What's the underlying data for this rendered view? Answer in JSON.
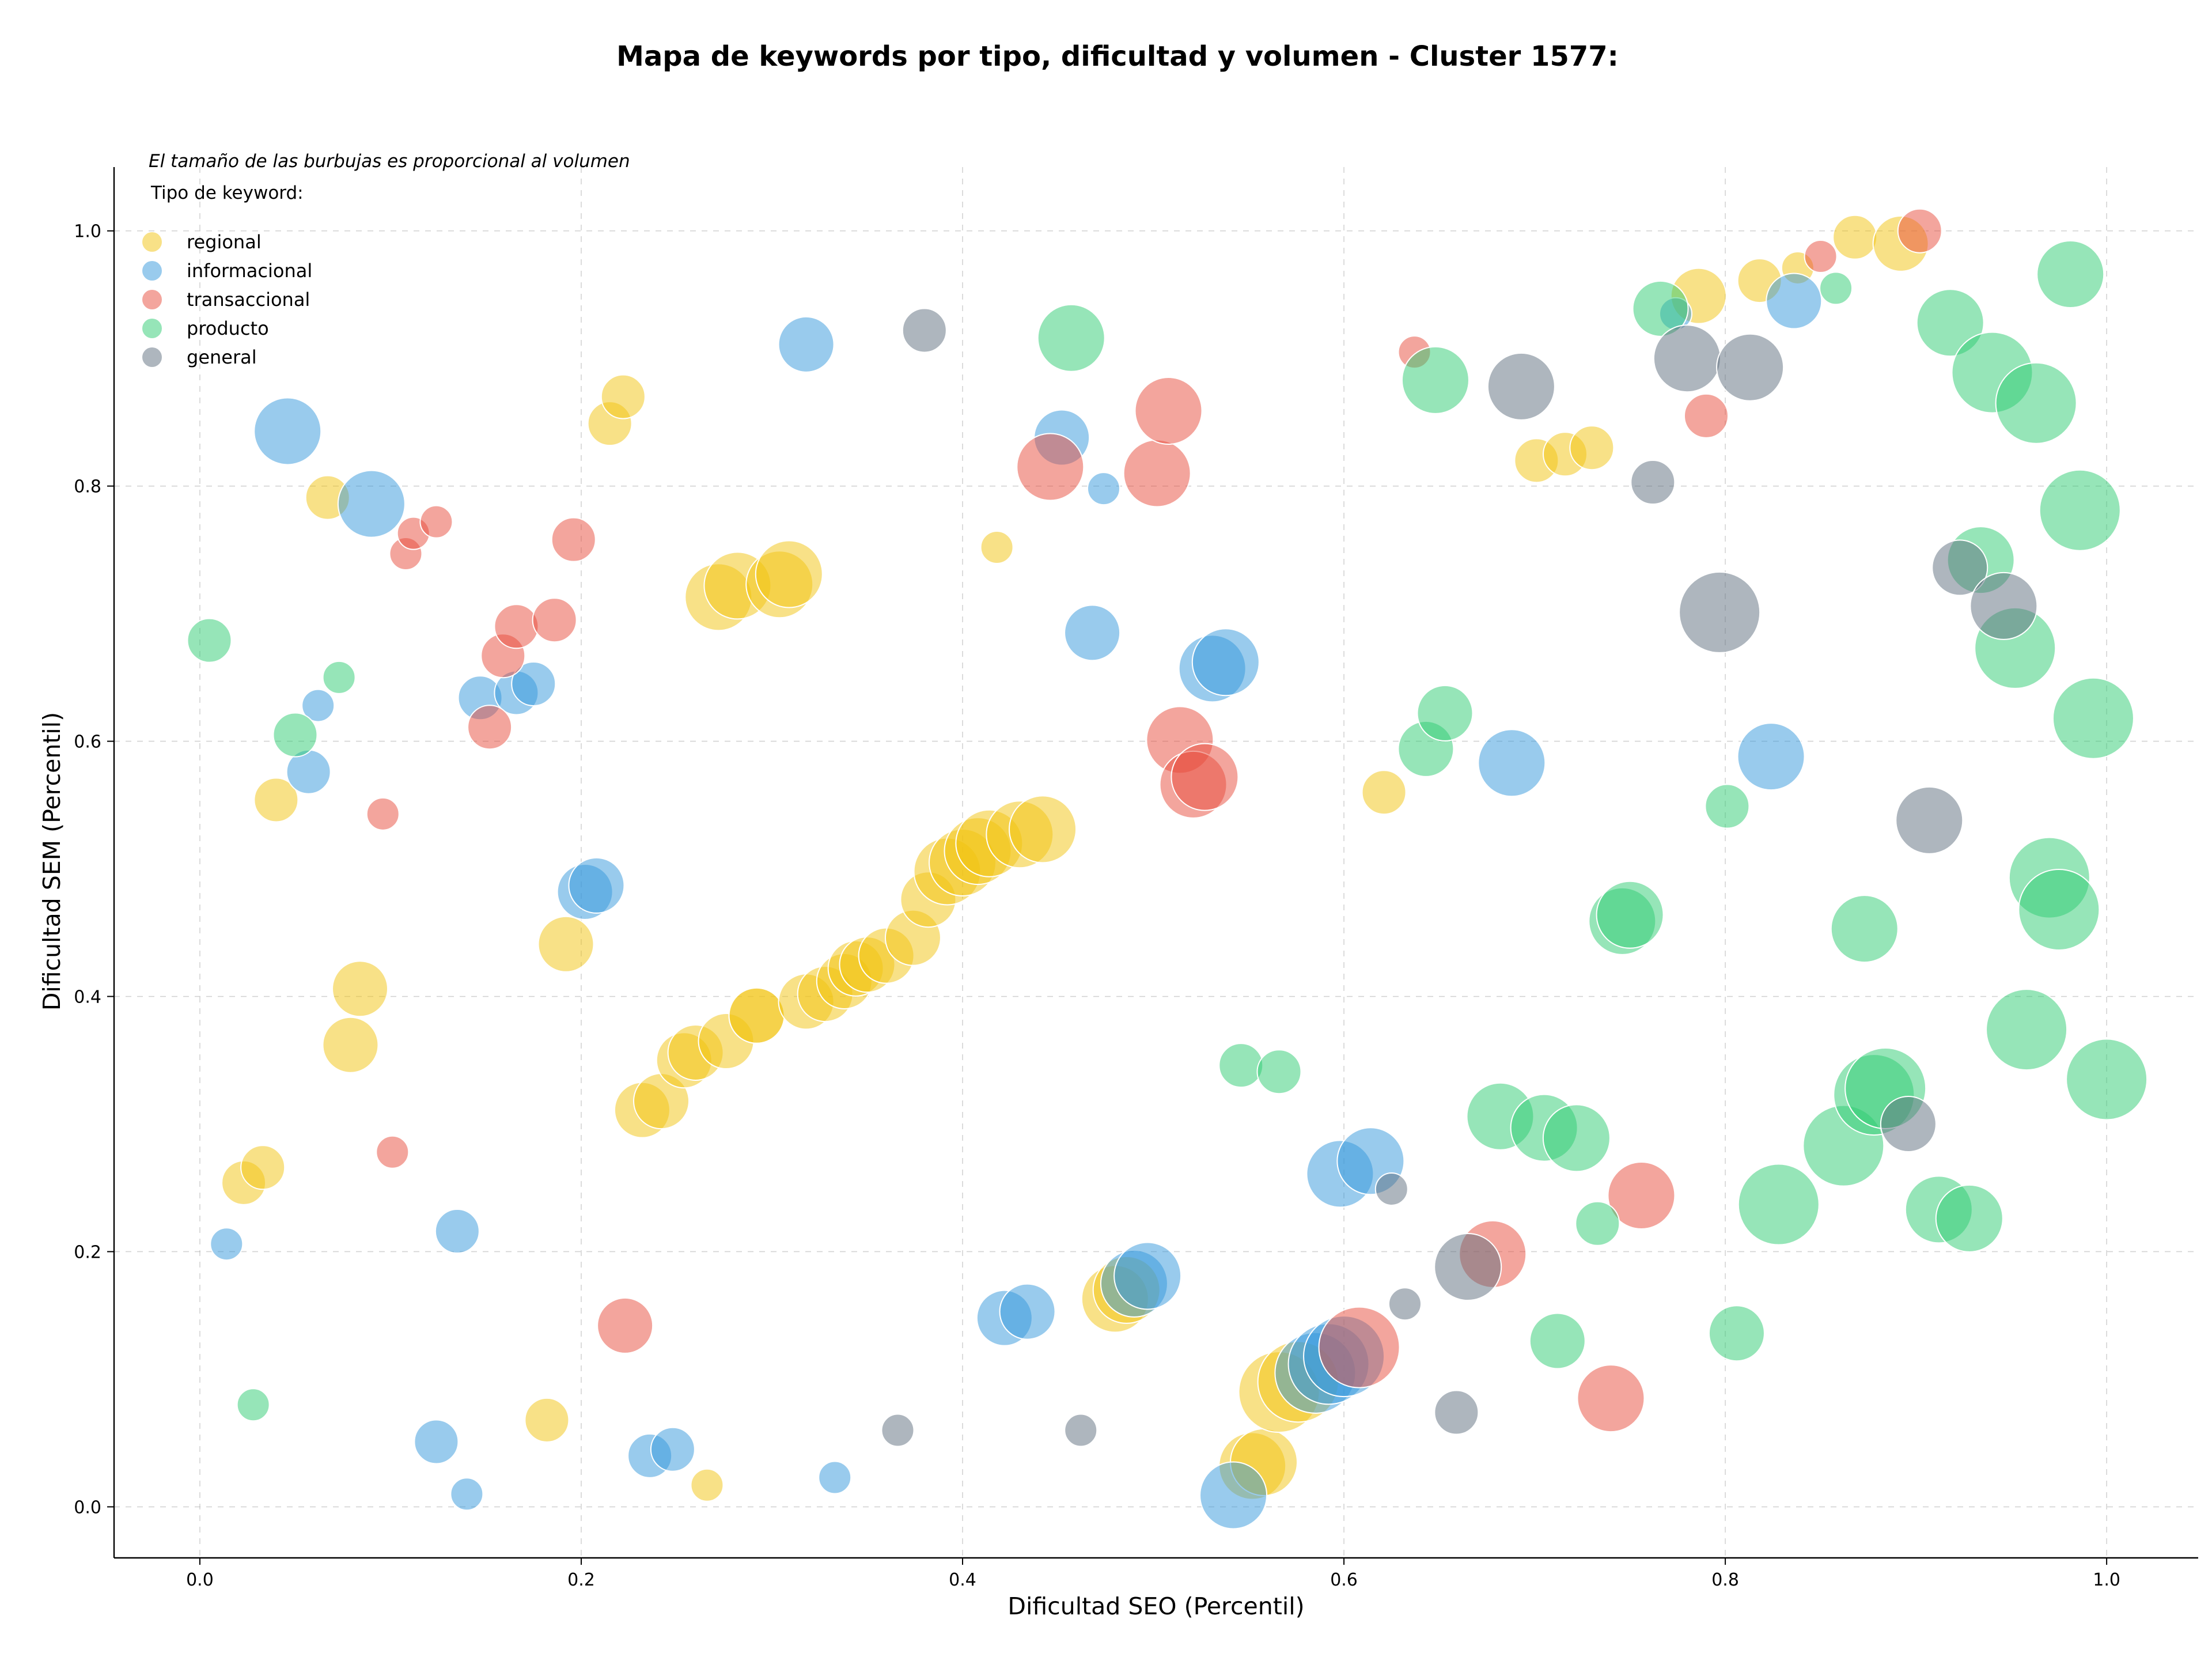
{
  "chart_data": {
    "type": "scatter",
    "title": "Mapa de keywords por tipo, dificultad y volumen - Cluster 1577:",
    "xlabel": "Dificultad SEO (Percentil)",
    "ylabel": "Dificultad SEM (Percentil)",
    "xlim": [
      -0.045,
      1.048
    ],
    "ylim": [
      -0.04,
      1.05
    ],
    "xticks": [
      "0.0",
      "0.2",
      "0.4",
      "0.6",
      "0.8",
      "1.0"
    ],
    "yticks": [
      "0.0",
      "0.2",
      "0.4",
      "0.6",
      "0.8",
      "1.0"
    ],
    "grid": true,
    "annotation": "El tamaño de las burbujas es proporcional al volumen",
    "legend": {
      "title": "Tipo de keyword:",
      "placement": "top-left"
    },
    "series": [
      {
        "name": "regional",
        "color": "#f1c40f",
        "points": [
          [
            0.023,
            0.254,
            3
          ],
          [
            0.033,
            0.266,
            3
          ],
          [
            0.04,
            0.554,
            3
          ],
          [
            0.067,
            0.791,
            3
          ],
          [
            0.079,
            0.362,
            4
          ],
          [
            0.084,
            0.406,
            4
          ],
          [
            0.182,
            0.068,
            3
          ],
          [
            0.192,
            0.441,
            4
          ],
          [
            0.215,
            0.849,
            3
          ],
          [
            0.222,
            0.87,
            3
          ],
          [
            0.232,
            0.311,
            4
          ],
          [
            0.242,
            0.318,
            4
          ],
          [
            0.254,
            0.35,
            4
          ],
          [
            0.26,
            0.356,
            4
          ],
          [
            0.266,
            0.017,
            2
          ],
          [
            0.272,
            0.713,
            5
          ],
          [
            0.276,
            0.365,
            4
          ],
          [
            0.282,
            0.722,
            5
          ],
          [
            0.292,
            0.385,
            4
          ],
          [
            0.292,
            0.385,
            4
          ],
          [
            0.304,
            0.723,
            5
          ],
          [
            0.309,
            0.731,
            5
          ],
          [
            0.318,
            0.396,
            4
          ],
          [
            0.328,
            0.402,
            4
          ],
          [
            0.338,
            0.412,
            4
          ],
          [
            0.344,
            0.422,
            4
          ],
          [
            0.35,
            0.425,
            4
          ],
          [
            0.36,
            0.432,
            4
          ],
          [
            0.374,
            0.446,
            4
          ],
          [
            0.382,
            0.476,
            4
          ],
          [
            0.392,
            0.498,
            5
          ],
          [
            0.4,
            0.505,
            5
          ],
          [
            0.408,
            0.514,
            5
          ],
          [
            0.414,
            0.52,
            5
          ],
          [
            0.418,
            0.752,
            2
          ],
          [
            0.43,
            0.527,
            5
          ],
          [
            0.442,
            0.531,
            5
          ],
          [
            0.48,
            0.163,
            5
          ],
          [
            0.486,
            0.17,
            5
          ],
          [
            0.552,
            0.032,
            5
          ],
          [
            0.558,
            0.035,
            5
          ],
          [
            0.566,
            0.09,
            6
          ],
          [
            0.576,
            0.098,
            6
          ],
          [
            0.621,
            0.56,
            3
          ],
          [
            0.701,
            0.82,
            3
          ],
          [
            0.716,
            0.825,
            3
          ],
          [
            0.73,
            0.83,
            3
          ],
          [
            0.786,
            0.949,
            4
          ],
          [
            0.818,
            0.961,
            3
          ],
          [
            0.838,
            0.971,
            2
          ],
          [
            0.868,
            0.995,
            3
          ],
          [
            0.892,
            0.99,
            4
          ]
        ]
      },
      {
        "name": "informacional",
        "color": "#3498db",
        "points": [
          [
            0.014,
            0.206,
            2
          ],
          [
            0.046,
            0.843,
            5
          ],
          [
            0.057,
            0.576,
            3
          ],
          [
            0.062,
            0.628,
            2
          ],
          [
            0.09,
            0.786,
            5
          ],
          [
            0.124,
            0.051,
            3
          ],
          [
            0.135,
            0.216,
            3
          ],
          [
            0.14,
            0.01,
            2
          ],
          [
            0.147,
            0.634,
            3
          ],
          [
            0.166,
            0.638,
            3
          ],
          [
            0.175,
            0.645,
            3
          ],
          [
            0.202,
            0.482,
            4
          ],
          [
            0.208,
            0.487,
            4
          ],
          [
            0.236,
            0.04,
            3
          ],
          [
            0.248,
            0.045,
            3
          ],
          [
            0.318,
            0.911,
            4
          ],
          [
            0.333,
            0.023,
            2
          ],
          [
            0.422,
            0.148,
            4
          ],
          [
            0.434,
            0.153,
            4
          ],
          [
            0.452,
            0.838,
            4
          ],
          [
            0.468,
            0.685,
            4
          ],
          [
            0.474,
            0.798,
            2
          ],
          [
            0.49,
            0.175,
            5
          ],
          [
            0.497,
            0.181,
            5
          ],
          [
            0.542,
            0.009,
            5
          ],
          [
            0.531,
            0.657,
            5
          ],
          [
            0.538,
            0.662,
            5
          ],
          [
            0.585,
            0.105,
            6
          ],
          [
            0.592,
            0.112,
            6
          ],
          [
            0.6,
            0.118,
            6
          ],
          [
            0.598,
            0.261,
            5
          ],
          [
            0.614,
            0.271,
            5
          ],
          [
            0.688,
            0.583,
            5
          ],
          [
            0.774,
            0.935,
            2
          ],
          [
            0.824,
            0.588,
            5
          ],
          [
            0.836,
            0.945,
            4
          ]
        ]
      },
      {
        "name": "transaccional",
        "color": "#e74c3c",
        "points": [
          [
            0.096,
            0.543,
            2
          ],
          [
            0.101,
            0.278,
            2
          ],
          [
            0.108,
            0.747,
            2
          ],
          [
            0.112,
            0.763,
            2
          ],
          [
            0.124,
            0.772,
            2
          ],
          [
            0.152,
            0.611,
            3
          ],
          [
            0.159,
            0.667,
            3
          ],
          [
            0.166,
            0.69,
            3
          ],
          [
            0.186,
            0.695,
            3
          ],
          [
            0.196,
            0.758,
            3
          ],
          [
            0.223,
            0.142,
            4
          ],
          [
            0.446,
            0.815,
            5
          ],
          [
            0.502,
            0.81,
            5
          ],
          [
            0.508,
            0.859,
            5
          ],
          [
            0.514,
            0.601,
            5
          ],
          [
            0.521,
            0.566,
            5
          ],
          [
            0.527,
            0.572,
            5
          ],
          [
            0.608,
            0.125,
            6
          ],
          [
            0.637,
            0.905,
            2
          ],
          [
            0.678,
            0.198,
            5
          ],
          [
            0.74,
            0.085,
            5
          ],
          [
            0.756,
            0.244,
            5
          ],
          [
            0.79,
            0.855,
            3
          ],
          [
            0.85,
            0.98,
            2
          ],
          [
            0.902,
            1.0,
            3
          ]
        ]
      },
      {
        "name": "producto",
        "color": "#2ecc71",
        "points": [
          [
            0.005,
            0.679,
            3
          ],
          [
            0.028,
            0.08,
            2
          ],
          [
            0.05,
            0.605,
            3
          ],
          [
            0.073,
            0.65,
            2
          ],
          [
            0.457,
            0.916,
            5
          ],
          [
            0.546,
            0.346,
            3
          ],
          [
            0.566,
            0.341,
            3
          ],
          [
            0.643,
            0.594,
            4
          ],
          [
            0.648,
            0.883,
            5
          ],
          [
            0.653,
            0.622,
            4
          ],
          [
            0.682,
            0.306,
            5
          ],
          [
            0.705,
            0.297,
            5
          ],
          [
            0.712,
            0.13,
            4
          ],
          [
            0.722,
            0.289,
            5
          ],
          [
            0.733,
            0.222,
            3
          ],
          [
            0.746,
            0.459,
            5
          ],
          [
            0.75,
            0.464,
            5
          ],
          [
            0.766,
            0.939,
            4
          ],
          [
            0.801,
            0.549,
            3
          ],
          [
            0.806,
            0.136,
            4
          ],
          [
            0.828,
            0.237,
            6
          ],
          [
            0.858,
            0.955,
            2
          ],
          [
            0.862,
            0.283,
            6
          ],
          [
            0.873,
            0.453,
            5
          ],
          [
            0.878,
            0.323,
            6
          ],
          [
            0.884,
            0.328,
            6
          ],
          [
            0.912,
            0.233,
            5
          ],
          [
            0.918,
            0.928,
            5
          ],
          [
            0.928,
            0.226,
            5
          ],
          [
            0.934,
            0.742,
            5
          ],
          [
            0.94,
            0.889,
            6
          ],
          [
            0.952,
            0.673,
            6
          ],
          [
            0.963,
            0.865,
            6
          ],
          [
            0.958,
            0.374,
            6
          ],
          [
            0.97,
            0.493,
            6
          ],
          [
            0.975,
            0.468,
            6
          ],
          [
            0.981,
            0.966,
            5
          ],
          [
            0.986,
            0.781,
            6
          ],
          [
            0.993,
            0.618,
            6
          ],
          [
            1.0,
            0.335,
            6
          ]
        ]
      },
      {
        "name": "general",
        "color": "#5d6d7e",
        "points": [
          [
            0.366,
            0.06,
            2
          ],
          [
            0.38,
            0.922,
            3
          ],
          [
            0.462,
            0.06,
            2
          ],
          [
            0.625,
            0.249,
            2
          ],
          [
            0.632,
            0.159,
            2
          ],
          [
            0.659,
            0.074,
            3
          ],
          [
            0.665,
            0.188,
            5
          ],
          [
            0.693,
            0.878,
            5
          ],
          [
            0.762,
            0.803,
            3
          ],
          [
            0.78,
            0.9,
            5
          ],
          [
            0.797,
            0.701,
            6
          ],
          [
            0.813,
            0.893,
            5
          ],
          [
            0.896,
            0.3,
            4
          ],
          [
            0.907,
            0.538,
            5
          ],
          [
            0.923,
            0.736,
            4
          ],
          [
            0.946,
            0.706,
            5
          ]
        ]
      }
    ]
  }
}
